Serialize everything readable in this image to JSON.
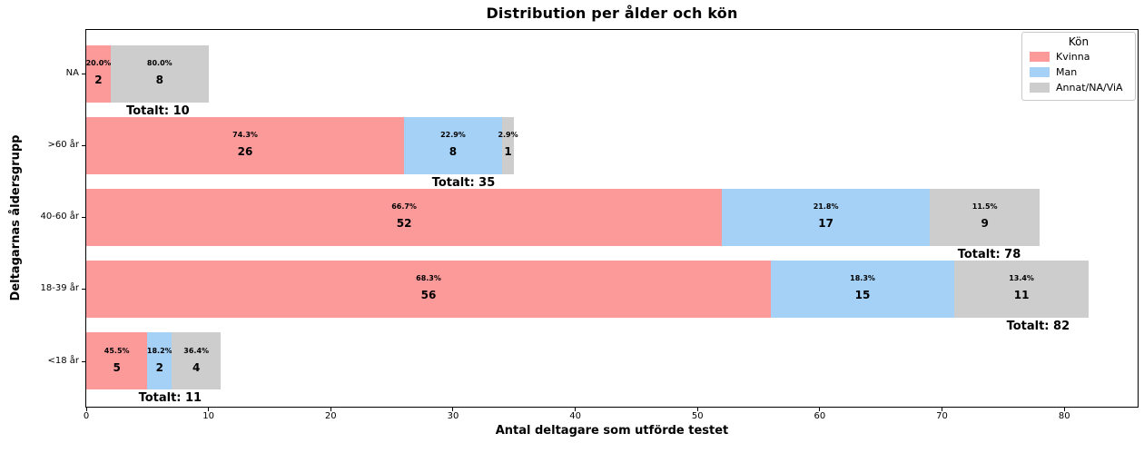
{
  "chart_data": {
    "type": "bar",
    "orientation": "horizontal",
    "stacked": true,
    "title": "Distribution per ålder och kön",
    "xlabel": "Antal deltagare som utförde testet",
    "ylabel": "Deltagarnas åldersgrupp",
    "x_ticks": [
      0,
      10,
      20,
      30,
      40,
      50,
      60,
      70,
      80
    ],
    "xlim": [
      0,
      86
    ],
    "grid": false,
    "legend": {
      "title": "Kön",
      "position": "upper right",
      "items": [
        {
          "label": "Kvinna",
          "color": "#FC9A9A"
        },
        {
          "label": "Man",
          "color": "#A5D1F7"
        },
        {
          "label": "Annat/NA/ViA",
          "color": "#CDCDCD"
        }
      ]
    },
    "rows": [
      {
        "category": "NA",
        "total": 10,
        "total_label": "Totalt: 10",
        "segments": [
          {
            "series": "Kvinna",
            "value": 2,
            "count_label": "2",
            "percent_label": "20.0%"
          },
          {
            "series": "Annat/NA/ViA",
            "value": 8,
            "count_label": "8",
            "percent_label": "80.0%"
          }
        ]
      },
      {
        "category": ">60 år",
        "total": 35,
        "total_label": "Totalt: 35",
        "segments": [
          {
            "series": "Kvinna",
            "value": 26,
            "count_label": "26",
            "percent_label": "74.3%"
          },
          {
            "series": "Man",
            "value": 8,
            "count_label": "8",
            "percent_label": "22.9%"
          },
          {
            "series": "Annat/NA/ViA",
            "value": 1,
            "count_label": "1",
            "percent_label": "2.9%"
          }
        ]
      },
      {
        "category": "40-60 år",
        "total": 78,
        "total_label": "Totalt: 78",
        "segments": [
          {
            "series": "Kvinna",
            "value": 52,
            "count_label": "52",
            "percent_label": "66.7%"
          },
          {
            "series": "Man",
            "value": 17,
            "count_label": "17",
            "percent_label": "21.8%"
          },
          {
            "series": "Annat/NA/ViA",
            "value": 9,
            "count_label": "9",
            "percent_label": "11.5%"
          }
        ]
      },
      {
        "category": "18-39 år",
        "total": 82,
        "total_label": "Totalt: 82",
        "segments": [
          {
            "series": "Kvinna",
            "value": 56,
            "count_label": "56",
            "percent_label": "68.3%"
          },
          {
            "series": "Man",
            "value": 15,
            "count_label": "15",
            "percent_label": "18.3%"
          },
          {
            "series": "Annat/NA/ViA",
            "value": 11,
            "count_label": "11",
            "percent_label": "13.4%"
          }
        ]
      },
      {
        "category": "<18 år",
        "total": 11,
        "total_label": "Totalt: 11",
        "segments": [
          {
            "series": "Kvinna",
            "value": 5,
            "count_label": "5",
            "percent_label": "45.5%"
          },
          {
            "series": "Man",
            "value": 2,
            "count_label": "2",
            "percent_label": "18.2%"
          },
          {
            "series": "Annat/NA/ViA",
            "value": 4,
            "count_label": "4",
            "percent_label": "36.4%"
          }
        ]
      }
    ]
  }
}
